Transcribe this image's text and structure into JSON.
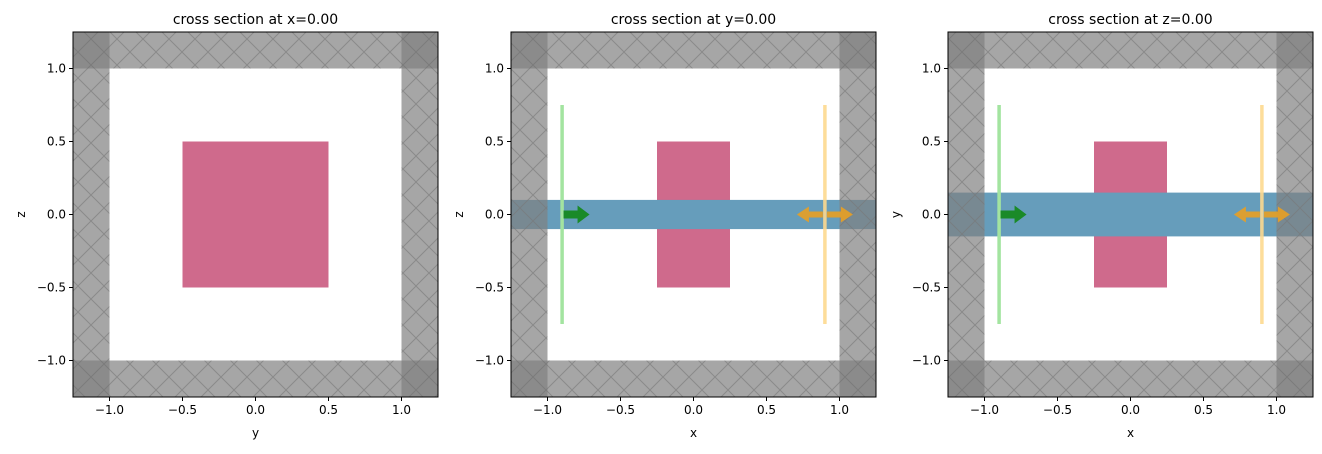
{
  "chart_data": [
    {
      "type": "diagram-plot",
      "title": "cross section at x=0.00",
      "xlabel": "y",
      "ylabel": "z",
      "xlim": [
        -1.25,
        1.25
      ],
      "ylim": [
        -1.25,
        1.25
      ],
      "ticks": [
        -1.0,
        -0.5,
        0.0,
        0.5,
        1.0
      ],
      "tick_labels": [
        "−1.0",
        "−0.5",
        "0.0",
        "0.5",
        "1.0"
      ],
      "pml_inner": 1.0,
      "structures": [
        {
          "name": "box",
          "x": [
            -0.5,
            0.5
          ],
          "y": [
            -0.5,
            0.5
          ],
          "color": "#cf6a8c"
        }
      ],
      "waveguide": null,
      "source": null,
      "monitor": null
    },
    {
      "type": "diagram-plot",
      "title": "cross section at y=0.00",
      "xlabel": "x",
      "ylabel": "z",
      "xlim": [
        -1.25,
        1.25
      ],
      "ylim": [
        -1.25,
        1.25
      ],
      "ticks": [
        -1.0,
        -0.5,
        0.0,
        0.5,
        1.0
      ],
      "tick_labels": [
        "−1.0",
        "−0.5",
        "0.0",
        "0.5",
        "1.0"
      ],
      "pml_inner": 1.0,
      "structures": [
        {
          "name": "box",
          "x": [
            -0.25,
            0.25
          ],
          "y": [
            -0.5,
            0.5
          ],
          "color": "#cf6a8c"
        }
      ],
      "waveguide": {
        "y": [
          -0.1,
          0.1
        ],
        "color": "#669dbb"
      },
      "source": {
        "x": -0.9,
        "y": [
          -0.75,
          0.75
        ],
        "color": "#a3e4a0",
        "arrow_color": "#1a8a28"
      },
      "monitor": {
        "x": 0.9,
        "y": [
          -0.75,
          0.75
        ],
        "color": "#fdd98f",
        "arrow_color": "#e8a024"
      }
    },
    {
      "type": "diagram-plot",
      "title": "cross section at z=0.00",
      "xlabel": "x",
      "ylabel": "y",
      "xlim": [
        -1.25,
        1.25
      ],
      "ylim": [
        -1.25,
        1.25
      ],
      "ticks": [
        -1.0,
        -0.5,
        0.0,
        0.5,
        1.0
      ],
      "tick_labels": [
        "−1.0",
        "−0.5",
        "0.0",
        "0.5",
        "1.0"
      ],
      "pml_inner": 1.0,
      "structures": [
        {
          "name": "box",
          "x": [
            -0.25,
            0.25
          ],
          "y": [
            -0.5,
            0.5
          ],
          "color": "#cf6a8c"
        }
      ],
      "waveguide": {
        "y": [
          -0.15,
          0.15
        ],
        "color": "#669dbb"
      },
      "source": {
        "x": -0.9,
        "y": [
          -0.75,
          0.75
        ],
        "color": "#a3e4a0",
        "arrow_color": "#1a8a28"
      },
      "monitor": {
        "x": 0.9,
        "y": [
          -0.75,
          0.75
        ],
        "color": "#fdd98f",
        "arrow_color": "#e8a024"
      }
    }
  ]
}
